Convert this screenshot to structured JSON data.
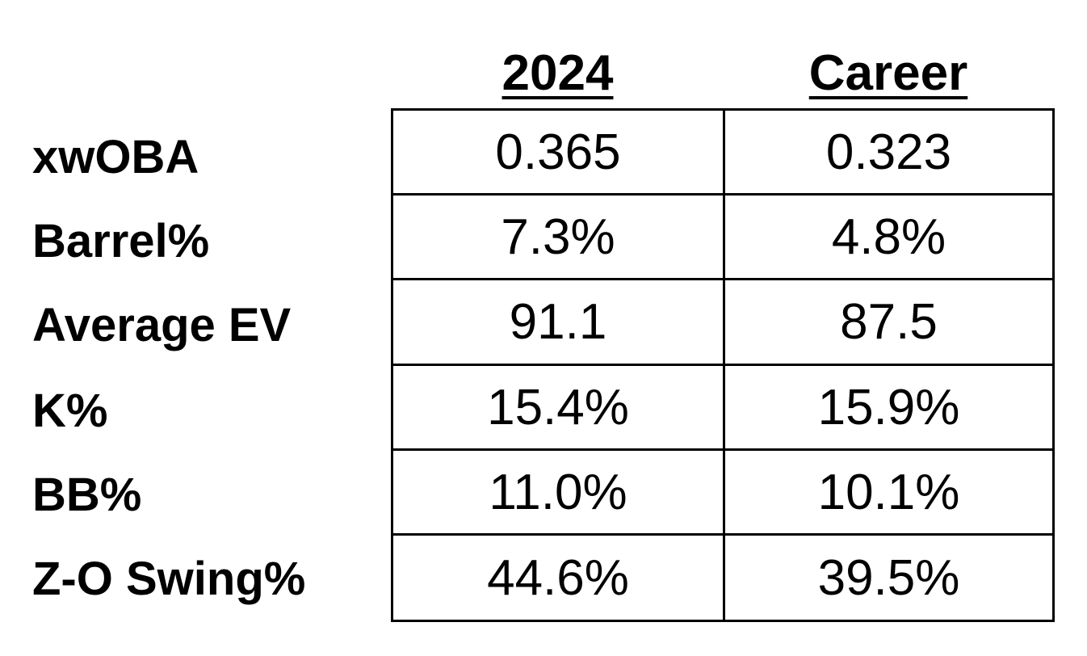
{
  "chart_data": {
    "type": "table",
    "columns": [
      "2024",
      "Career"
    ],
    "rows": [
      {
        "label": "xwOBA",
        "values": [
          "0.365",
          "0.323"
        ]
      },
      {
        "label": "Barrel%",
        "values": [
          "7.3%",
          "4.8%"
        ]
      },
      {
        "label": "Average EV",
        "values": [
          "91.1",
          "87.5"
        ]
      },
      {
        "label": "K%",
        "values": [
          "15.4%",
          "15.9%"
        ]
      },
      {
        "label": "BB%",
        "values": [
          "11.0%",
          "10.1%"
        ]
      },
      {
        "label": "Z-O Swing%",
        "values": [
          "44.6%",
          "39.5%"
        ]
      }
    ]
  }
}
